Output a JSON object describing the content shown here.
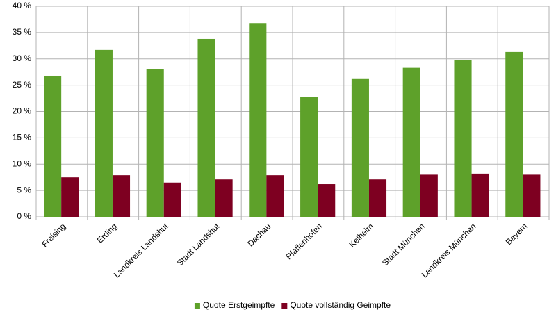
{
  "chart_data": {
    "type": "bar",
    "categories": [
      "Freising",
      "Erding",
      "Landkreis Landshut",
      "Stadt Landshut",
      "Dachau",
      "Pfaffenhofen",
      "Kelheim",
      "Stadt München",
      "Landkreis München",
      "Bayern"
    ],
    "series": [
      {
        "name": "Quote Erstgeimpfte",
        "color": "#5ea12a",
        "values": [
          26.8,
          31.7,
          28.0,
          33.8,
          36.8,
          22.8,
          26.3,
          28.3,
          29.8,
          31.3
        ]
      },
      {
        "name": "Quote vollständig Geimpfte",
        "color": "#7e0021",
        "values": [
          7.5,
          7.9,
          6.5,
          7.1,
          7.9,
          6.2,
          7.1,
          8.0,
          8.2,
          8.0
        ]
      }
    ],
    "ylim": [
      0,
      40
    ],
    "yticks": [
      {
        "value": 0,
        "label": "0 %"
      },
      {
        "value": 5,
        "label": "5 %"
      },
      {
        "value": 10,
        "label": "10 %"
      },
      {
        "value": 15,
        "label": "15 %"
      },
      {
        "value": 20,
        "label": "20 %"
      },
      {
        "value": 25,
        "label": "25 %"
      },
      {
        "value": 30,
        "label": "30 %"
      },
      {
        "value": 35,
        "label": "35 %"
      },
      {
        "value": 40,
        "label": "40 %"
      }
    ],
    "grid": true,
    "legend": "bottom"
  }
}
